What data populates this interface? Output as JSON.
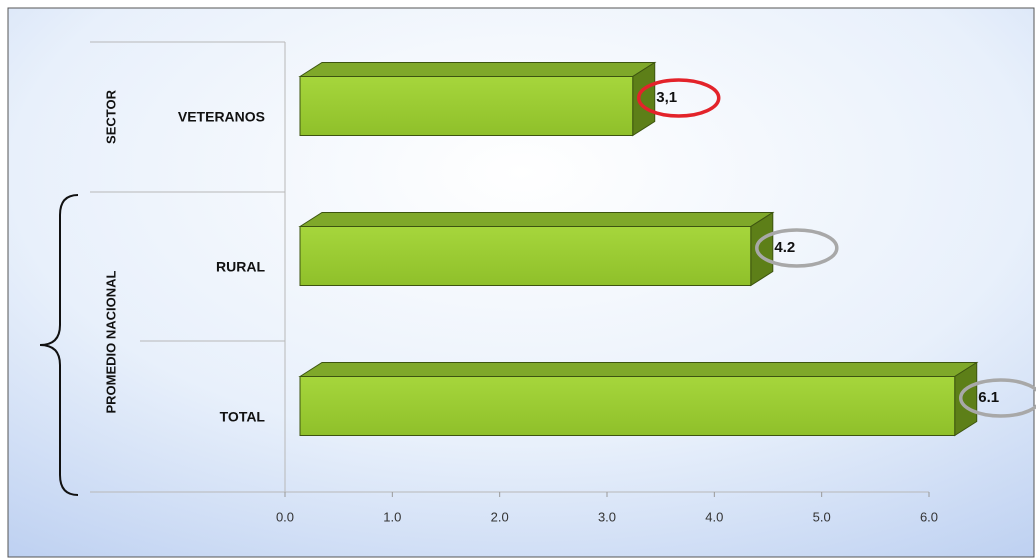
{
  "chart_data": {
    "type": "bar3d_horizontal",
    "groups": [
      "SECTOR",
      "PROMEDIO NACIONAL"
    ],
    "categories": [
      "VETERANOS",
      "RURAL",
      "TOTAL"
    ],
    "values": [
      3.1,
      4.2,
      6.1
    ],
    "value_labels": [
      "3,1",
      "4.2",
      "6.1"
    ],
    "value_label_colors": [
      "#e3232a",
      "#a8a8a8",
      "#a8a8a8"
    ],
    "color": "#99cc33",
    "xlim": [
      0,
      6
    ],
    "xticks": [
      {
        "value": 0,
        "label": "0.0"
      },
      {
        "value": 1,
        "label": "1.0"
      },
      {
        "value": 2,
        "label": "2.0"
      },
      {
        "value": 3,
        "label": "3.0"
      },
      {
        "value": 4,
        "label": "4.0"
      },
      {
        "value": 5,
        "label": "5.0"
      },
      {
        "value": 6,
        "label": "6.0"
      }
    ]
  }
}
